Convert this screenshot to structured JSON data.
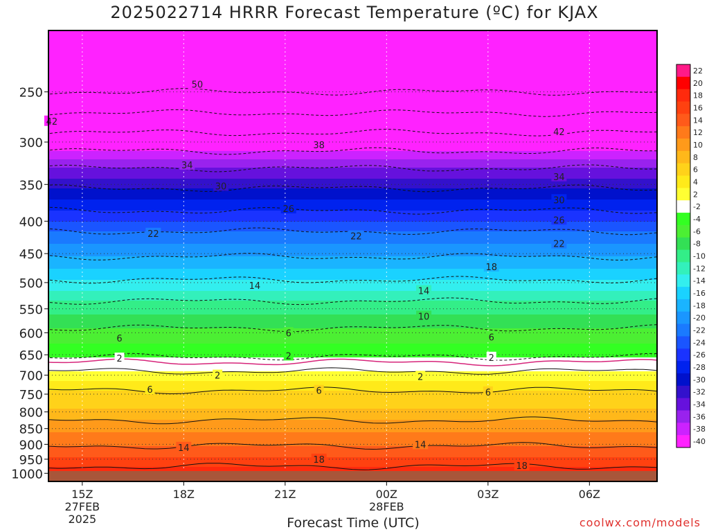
{
  "title": "2025022714 HRRR Forecast Temperature (ºC) for KJAX",
  "credit": "coolwx.com/models",
  "chart_data": {
    "type": "heatmap",
    "title": "2025022714 HRRR Forecast Temperature (ºC) for KJAX",
    "xlabel": "Forecast Time (UTC)",
    "ylabel": "",
    "x_ticks": [
      {
        "hour": 15,
        "label": "15Z",
        "label2": "27FEB",
        "label3": "2025"
      },
      {
        "hour": 18,
        "label": "18Z",
        "label2": "",
        "label3": ""
      },
      {
        "hour": 21,
        "label": "21Z",
        "label2": "",
        "label3": ""
      },
      {
        "hour": 24,
        "label": "00Z",
        "label2": "28FEB",
        "label3": ""
      },
      {
        "hour": 27,
        "label": "03Z",
        "label2": "",
        "label3": ""
      },
      {
        "hour": 30,
        "label": "06Z",
        "label2": "",
        "label3": ""
      }
    ],
    "xlim": [
      14,
      32
    ],
    "y_levels": [
      250,
      300,
      350,
      400,
      450,
      500,
      550,
      600,
      650,
      700,
      750,
      800,
      850,
      900,
      950,
      1000
    ],
    "ylim_hpa": [
      200,
      1030
    ],
    "y_scale": "log",
    "colorbar": {
      "levels": [
        22,
        20,
        18,
        16,
        14,
        12,
        10,
        8,
        6,
        4,
        2,
        -2,
        -4,
        -6,
        -8,
        -10,
        -12,
        -14,
        -16,
        -18,
        -20,
        -22,
        -24,
        -26,
        -28,
        -30,
        -32,
        -34,
        -36,
        -38,
        -40
      ],
      "colors": [
        "#ff1a88",
        "#ff0000",
        "#ff2a0d",
        "#ff4110",
        "#ff5a1a",
        "#ff7a1a",
        "#ff9a1a",
        "#ffb81a",
        "#ffd21a",
        "#ffea1a",
        "#ffff33",
        "#ffffff",
        "#33ff22",
        "#4cef33",
        "#33e055",
        "#33ee88",
        "#33f0bb",
        "#33eeee",
        "#1ad2ff",
        "#1ab4ff",
        "#1a96ff",
        "#1a7aff",
        "#1a55ff",
        "#1a33ff",
        "#0022ee",
        "#0011cc",
        "#3311cc",
        "#6611dd",
        "#9922ee",
        "#cc22ff",
        "#ff22ff"
      ]
    },
    "temperature_profile": [
      {
        "hpa": 220,
        "t": -55
      },
      {
        "hpa": 250,
        "t": -50
      },
      {
        "hpa": 280,
        "t": -44
      },
      {
        "hpa": 300,
        "t": -40
      },
      {
        "hpa": 330,
        "t": -34
      },
      {
        "hpa": 355,
        "t": -30
      },
      {
        "hpa": 385,
        "t": -26
      },
      {
        "hpa": 415,
        "t": -22
      },
      {
        "hpa": 455,
        "t": -18
      },
      {
        "hpa": 495,
        "t": -14
      },
      {
        "hpa": 535,
        "t": -10
      },
      {
        "hpa": 590,
        "t": -6
      },
      {
        "hpa": 625,
        "t": -4
      },
      {
        "hpa": 655,
        "t": -2
      },
      {
        "hpa": 668,
        "t": 0
      },
      {
        "hpa": 690,
        "t": 2
      },
      {
        "hpa": 740,
        "t": 6
      },
      {
        "hpa": 790,
        "t": 8
      },
      {
        "hpa": 860,
        "t": 12
      },
      {
        "hpa": 905,
        "t": 14
      },
      {
        "hpa": 960,
        "t": 17
      },
      {
        "hpa": 990,
        "t": 19
      },
      {
        "hpa": 1010,
        "t": 20
      }
    ],
    "contour_labels": [
      {
        "text": "50",
        "hour": 18.4,
        "hpa": 243
      },
      {
        "text": "42",
        "hour": 14.1,
        "hpa": 278
      },
      {
        "text": "42",
        "hour": 29.1,
        "hpa": 289
      },
      {
        "text": "38",
        "hour": 22.0,
        "hpa": 303
      },
      {
        "text": "34",
        "hour": 18.1,
        "hpa": 326
      },
      {
        "text": "34",
        "hour": 29.1,
        "hpa": 340
      },
      {
        "text": "30",
        "hour": 19.1,
        "hpa": 352
      },
      {
        "text": "30",
        "hour": 29.1,
        "hpa": 370
      },
      {
        "text": "26",
        "hour": 21.1,
        "hpa": 382
      },
      {
        "text": "26",
        "hour": 29.1,
        "hpa": 398
      },
      {
        "text": "22",
        "hour": 17.1,
        "hpa": 418
      },
      {
        "text": "22",
        "hour": 23.1,
        "hpa": 422
      },
      {
        "text": "22",
        "hour": 29.1,
        "hpa": 434
      },
      {
        "text": "18",
        "hour": 27.1,
        "hpa": 472
      },
      {
        "text": "14",
        "hour": 20.1,
        "hpa": 505
      },
      {
        "text": "14",
        "hour": 25.1,
        "hpa": 515
      },
      {
        "text": "10",
        "hour": 25.1,
        "hpa": 565
      },
      {
        "text": "6",
        "hour": 16.1,
        "hpa": 612
      },
      {
        "text": "6",
        "hour": 21.1,
        "hpa": 600
      },
      {
        "text": "6",
        "hour": 27.1,
        "hpa": 609
      },
      {
        "text": "2",
        "hour": 16.1,
        "hpa": 658
      },
      {
        "text": "2",
        "hour": 21.1,
        "hpa": 652
      },
      {
        "text": "2",
        "hour": 27.1,
        "hpa": 656
      },
      {
        "text": "2",
        "hour": 19.0,
        "hpa": 700
      },
      {
        "text": "2",
        "hour": 25.0,
        "hpa": 703
      },
      {
        "text": "6",
        "hour": 17.0,
        "hpa": 737
      },
      {
        "text": "6",
        "hour": 22.0,
        "hpa": 740
      },
      {
        "text": "6",
        "hour": 27.0,
        "hpa": 744
      },
      {
        "text": "14",
        "hour": 18.0,
        "hpa": 910
      },
      {
        "text": "14",
        "hour": 25.0,
        "hpa": 900
      },
      {
        "text": "18",
        "hour": 22.0,
        "hpa": 950
      },
      {
        "text": "18",
        "hour": 28.0,
        "hpa": 972
      }
    ]
  }
}
